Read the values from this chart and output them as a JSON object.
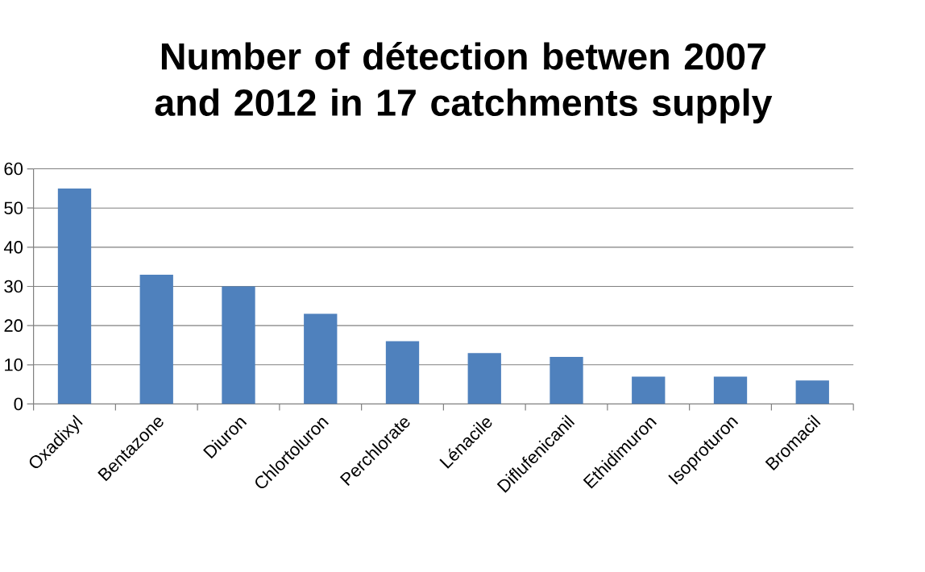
{
  "chart_data": {
    "type": "bar",
    "title": "Number of détection betwen 2007 and 2012 in 17 catchments supply",
    "categories": [
      "Oxadixyl",
      "Bentazone",
      "Diuron",
      "Chlortoluron",
      "Perchlorate",
      "Lénacile",
      "Diflufenicanil",
      "Ethidimuron",
      "Isoproturon",
      "Bromacil"
    ],
    "values": [
      55,
      33,
      30,
      23,
      16,
      13,
      12,
      7,
      7,
      6
    ],
    "color": "#4f81bd",
    "ylim": [
      0,
      60
    ],
    "yticks": [
      0,
      10,
      20,
      30,
      40,
      50,
      60
    ],
    "grid": "y"
  }
}
